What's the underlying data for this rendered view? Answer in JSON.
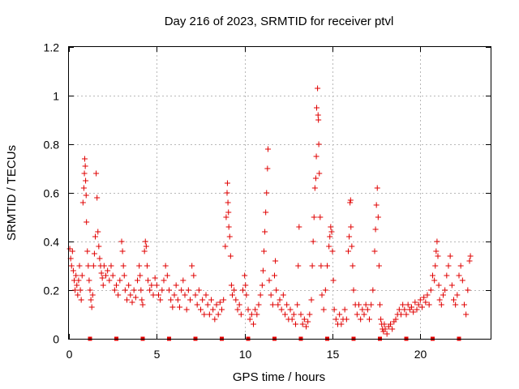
{
  "chart_data": {
    "type": "scatter",
    "title": "Day 216 of 2023, SRMTID for receiver ptvl",
    "xlabel": "GPS time / hours",
    "ylabel": "SRMTID / TECUs",
    "xlim": [
      0,
      24
    ],
    "ylim": [
      0,
      1.2
    ],
    "xticks": [
      0,
      5,
      10,
      15,
      20
    ],
    "xtick_labels": [
      "0",
      "5",
      "10",
      "15",
      "20"
    ],
    "yticks": [
      0,
      0.2,
      0.4,
      0.6,
      0.8,
      1.0,
      1.2
    ],
    "ytick_labels": [
      "0",
      "0.2",
      "0.4",
      "0.6",
      "0.8",
      "1",
      "1.2"
    ],
    "grid": true,
    "marker": "plus",
    "color": "#e00000",
    "series": [
      {
        "name": "SRMTID",
        "points": [
          [
            0.05,
            0.37
          ],
          [
            0.1,
            0.33
          ],
          [
            0.15,
            0.3
          ],
          [
            0.2,
            0.36
          ],
          [
            0.25,
            0.28
          ],
          [
            0.3,
            0.24
          ],
          [
            0.35,
            0.2
          ],
          [
            0.4,
            0.26
          ],
          [
            0.45,
            0.22
          ],
          [
            0.5,
            0.18
          ],
          [
            0.55,
            0.24
          ],
          [
            0.6,
            0.3
          ],
          [
            0.65,
            0.2
          ],
          [
            0.7,
            0.16
          ],
          [
            0.75,
            0.26
          ],
          [
            0.8,
            0.56
          ],
          [
            0.85,
            0.62
          ],
          [
            0.88,
            0.68
          ],
          [
            0.9,
            0.74
          ],
          [
            0.93,
            0.71
          ],
          [
            0.95,
            0.65
          ],
          [
            0.98,
            0.59
          ],
          [
            1.0,
            0.48
          ],
          [
            1.05,
            0.36
          ],
          [
            1.1,
            0.3
          ],
          [
            1.15,
            0.24
          ],
          [
            1.2,
            0.2
          ],
          [
            1.25,
            0.16
          ],
          [
            1.3,
            0.13
          ],
          [
            1.35,
            0.18
          ],
          [
            1.4,
            0.3
          ],
          [
            1.45,
            0.35
          ],
          [
            1.5,
            0.42
          ],
          [
            1.55,
            0.68
          ],
          [
            1.6,
            0.58
          ],
          [
            1.65,
            0.44
          ],
          [
            1.7,
            0.38
          ],
          [
            1.75,
            0.33
          ],
          [
            1.8,
            0.3
          ],
          [
            1.85,
            0.27
          ],
          [
            1.9,
            0.25
          ],
          [
            1.95,
            0.22
          ],
          [
            2.0,
            0.3
          ],
          [
            2.1,
            0.26
          ],
          [
            2.2,
            0.28
          ],
          [
            2.3,
            0.24
          ],
          [
            2.4,
            0.3
          ],
          [
            2.5,
            0.26
          ],
          [
            2.6,
            0.2
          ],
          [
            2.7,
            0.22
          ],
          [
            2.8,
            0.18
          ],
          [
            2.9,
            0.24
          ],
          [
            3.0,
            0.4
          ],
          [
            3.05,
            0.36
          ],
          [
            3.1,
            0.3
          ],
          [
            3.15,
            0.26
          ],
          [
            3.2,
            0.2
          ],
          [
            3.3,
            0.16
          ],
          [
            3.4,
            0.22
          ],
          [
            3.5,
            0.18
          ],
          [
            3.6,
            0.15
          ],
          [
            3.7,
            0.2
          ],
          [
            3.8,
            0.17
          ],
          [
            3.9,
            0.24
          ],
          [
            4.0,
            0.3
          ],
          [
            4.05,
            0.26
          ],
          [
            4.1,
            0.2
          ],
          [
            4.15,
            0.16
          ],
          [
            4.2,
            0.14
          ],
          [
            4.3,
            0.36
          ],
          [
            4.35,
            0.4
          ],
          [
            4.4,
            0.38
          ],
          [
            4.45,
            0.3
          ],
          [
            4.5,
            0.24
          ],
          [
            4.6,
            0.2
          ],
          [
            4.7,
            0.22
          ],
          [
            4.8,
            0.18
          ],
          [
            4.9,
            0.25
          ],
          [
            5.0,
            0.22
          ],
          [
            5.1,
            0.18
          ],
          [
            5.2,
            0.16
          ],
          [
            5.3,
            0.2
          ],
          [
            5.4,
            0.24
          ],
          [
            5.5,
            0.3
          ],
          [
            5.6,
            0.26
          ],
          [
            5.7,
            0.2
          ],
          [
            5.8,
            0.16
          ],
          [
            5.9,
            0.13
          ],
          [
            6.0,
            0.18
          ],
          [
            6.1,
            0.22
          ],
          [
            6.2,
            0.16
          ],
          [
            6.3,
            0.13
          ],
          [
            6.4,
            0.2
          ],
          [
            6.5,
            0.24
          ],
          [
            6.6,
            0.18
          ],
          [
            6.7,
            0.12
          ],
          [
            6.8,
            0.2
          ],
          [
            6.9,
            0.16
          ],
          [
            7.0,
            0.3
          ],
          [
            7.1,
            0.26
          ],
          [
            7.2,
            0.18
          ],
          [
            7.3,
            0.14
          ],
          [
            7.4,
            0.2
          ],
          [
            7.5,
            0.12
          ],
          [
            7.6,
            0.16
          ],
          [
            7.7,
            0.1
          ],
          [
            7.8,
            0.18
          ],
          [
            7.9,
            0.14
          ],
          [
            8.0,
            0.1
          ],
          [
            8.1,
            0.16
          ],
          [
            8.2,
            0.12
          ],
          [
            8.3,
            0.08
          ],
          [
            8.4,
            0.14
          ],
          [
            8.5,
            0.1
          ],
          [
            8.6,
            0.15
          ],
          [
            8.7,
            0.12
          ],
          [
            8.8,
            0.16
          ],
          [
            8.9,
            0.38
          ],
          [
            8.95,
            0.5
          ],
          [
            9.0,
            0.6
          ],
          [
            9.02,
            0.64
          ],
          [
            9.05,
            0.56
          ],
          [
            9.08,
            0.52
          ],
          [
            9.1,
            0.46
          ],
          [
            9.15,
            0.42
          ],
          [
            9.2,
            0.34
          ],
          [
            9.25,
            0.22
          ],
          [
            9.3,
            0.18
          ],
          [
            9.4,
            0.2
          ],
          [
            9.5,
            0.16
          ],
          [
            9.6,
            0.12
          ],
          [
            9.7,
            0.14
          ],
          [
            9.8,
            0.1
          ],
          [
            9.9,
            0.2
          ],
          [
            10.0,
            0.26
          ],
          [
            10.05,
            0.22
          ],
          [
            10.1,
            0.18
          ],
          [
            10.2,
            0.12
          ],
          [
            10.3,
            0.08
          ],
          [
            10.4,
            0.1
          ],
          [
            10.5,
            0.06
          ],
          [
            10.6,
            0.12
          ],
          [
            10.7,
            0.1
          ],
          [
            10.8,
            0.14
          ],
          [
            10.9,
            0.18
          ],
          [
            11.0,
            0.22
          ],
          [
            11.05,
            0.28
          ],
          [
            11.1,
            0.36
          ],
          [
            11.15,
            0.44
          ],
          [
            11.2,
            0.52
          ],
          [
            11.25,
            0.6
          ],
          [
            11.3,
            0.7
          ],
          [
            11.33,
            0.78
          ],
          [
            11.4,
            0.24
          ],
          [
            11.5,
            0.18
          ],
          [
            11.6,
            0.14
          ],
          [
            11.7,
            0.26
          ],
          [
            11.75,
            0.32
          ],
          [
            11.8,
            0.2
          ],
          [
            11.9,
            0.14
          ],
          [
            12.0,
            0.16
          ],
          [
            12.1,
            0.12
          ],
          [
            12.2,
            0.18
          ],
          [
            12.3,
            0.1
          ],
          [
            12.4,
            0.14
          ],
          [
            12.5,
            0.08
          ],
          [
            12.6,
            0.12
          ],
          [
            12.7,
            0.08
          ],
          [
            12.8,
            0.1
          ],
          [
            12.9,
            0.06
          ],
          [
            13.0,
            0.14
          ],
          [
            13.05,
            0.3
          ],
          [
            13.1,
            0.46
          ],
          [
            13.2,
            0.1
          ],
          [
            13.3,
            0.06
          ],
          [
            13.4,
            0.08
          ],
          [
            13.5,
            0.05
          ],
          [
            13.6,
            0.07
          ],
          [
            13.7,
            0.1
          ],
          [
            13.8,
            0.16
          ],
          [
            13.85,
            0.3
          ],
          [
            13.9,
            0.4
          ],
          [
            13.95,
            0.5
          ],
          [
            14.0,
            0.62
          ],
          [
            14.05,
            0.66
          ],
          [
            14.08,
            0.75
          ],
          [
            14.1,
            0.95
          ],
          [
            14.15,
            1.03
          ],
          [
            14.18,
            0.92
          ],
          [
            14.2,
            0.9
          ],
          [
            14.22,
            0.8
          ],
          [
            14.25,
            0.68
          ],
          [
            14.3,
            0.5
          ],
          [
            14.35,
            0.3
          ],
          [
            14.4,
            0.18
          ],
          [
            14.5,
            0.12
          ],
          [
            14.6,
            0.2
          ],
          [
            14.7,
            0.3
          ],
          [
            14.8,
            0.38
          ],
          [
            14.85,
            0.42
          ],
          [
            14.9,
            0.46
          ],
          [
            14.95,
            0.44
          ],
          [
            15.0,
            0.36
          ],
          [
            15.05,
            0.24
          ],
          [
            15.1,
            0.12
          ],
          [
            15.2,
            0.08
          ],
          [
            15.3,
            0.06
          ],
          [
            15.4,
            0.1
          ],
          [
            15.5,
            0.06
          ],
          [
            15.6,
            0.08
          ],
          [
            15.7,
            0.12
          ],
          [
            15.8,
            0.08
          ],
          [
            15.9,
            0.36
          ],
          [
            15.95,
            0.42
          ],
          [
            16.0,
            0.56
          ],
          [
            16.03,
            0.57
          ],
          [
            16.05,
            0.46
          ],
          [
            16.1,
            0.38
          ],
          [
            16.15,
            0.3
          ],
          [
            16.2,
            0.2
          ],
          [
            16.3,
            0.14
          ],
          [
            16.4,
            0.1
          ],
          [
            16.5,
            0.14
          ],
          [
            16.6,
            0.08
          ],
          [
            16.7,
            0.12
          ],
          [
            16.8,
            0.1
          ],
          [
            16.9,
            0.14
          ],
          [
            17.0,
            0.12
          ],
          [
            17.1,
            0.08
          ],
          [
            17.2,
            0.14
          ],
          [
            17.3,
            0.2
          ],
          [
            17.4,
            0.36
          ],
          [
            17.45,
            0.45
          ],
          [
            17.5,
            0.55
          ],
          [
            17.55,
            0.62
          ],
          [
            17.6,
            0.5
          ],
          [
            17.65,
            0.3
          ],
          [
            17.7,
            0.14
          ],
          [
            17.75,
            0.08
          ],
          [
            17.8,
            0.06
          ],
          [
            17.85,
            0.04
          ],
          [
            17.9,
            0.03
          ],
          [
            17.95,
            0.06
          ],
          [
            18.0,
            0.04
          ],
          [
            18.1,
            0.02
          ],
          [
            18.2,
            0.05
          ],
          [
            18.3,
            0.06
          ],
          [
            18.4,
            0.04
          ],
          [
            18.5,
            0.07
          ],
          [
            18.6,
            0.08
          ],
          [
            18.7,
            0.1
          ],
          [
            18.8,
            0.12
          ],
          [
            18.9,
            0.1
          ],
          [
            19.0,
            0.14
          ],
          [
            19.1,
            0.12
          ],
          [
            19.2,
            0.1
          ],
          [
            19.3,
            0.14
          ],
          [
            19.4,
            0.12
          ],
          [
            19.5,
            0.13
          ],
          [
            19.6,
            0.11
          ],
          [
            19.7,
            0.15
          ],
          [
            19.8,
            0.12
          ],
          [
            19.9,
            0.14
          ],
          [
            20.0,
            0.16
          ],
          [
            20.1,
            0.13
          ],
          [
            20.2,
            0.17
          ],
          [
            20.3,
            0.15
          ],
          [
            20.4,
            0.18
          ],
          [
            20.5,
            0.14
          ],
          [
            20.6,
            0.2
          ],
          [
            20.7,
            0.26
          ],
          [
            20.8,
            0.24
          ],
          [
            20.85,
            0.3
          ],
          [
            20.9,
            0.36
          ],
          [
            20.95,
            0.4
          ],
          [
            21.0,
            0.34
          ],
          [
            21.05,
            0.22
          ],
          [
            21.1,
            0.16
          ],
          [
            21.2,
            0.14
          ],
          [
            21.3,
            0.18
          ],
          [
            21.4,
            0.2
          ],
          [
            21.5,
            0.26
          ],
          [
            21.6,
            0.3
          ],
          [
            21.7,
            0.34
          ],
          [
            21.8,
            0.22
          ],
          [
            21.9,
            0.16
          ],
          [
            22.0,
            0.14
          ],
          [
            22.1,
            0.18
          ],
          [
            22.2,
            0.26
          ],
          [
            22.3,
            0.3
          ],
          [
            22.4,
            0.24
          ],
          [
            22.5,
            0.14
          ],
          [
            22.6,
            0.1
          ],
          [
            22.7,
            0.2
          ],
          [
            22.8,
            0.32
          ],
          [
            22.85,
            0.34
          ]
        ]
      }
    ],
    "markers_on_xaxis_hours": [
      1.2,
      2.7,
      4.2,
      5.7,
      7.2,
      8.7,
      10.2,
      11.7,
      13.2,
      14.7,
      16.2,
      17.7,
      19.2,
      20.7,
      22.2
    ]
  }
}
